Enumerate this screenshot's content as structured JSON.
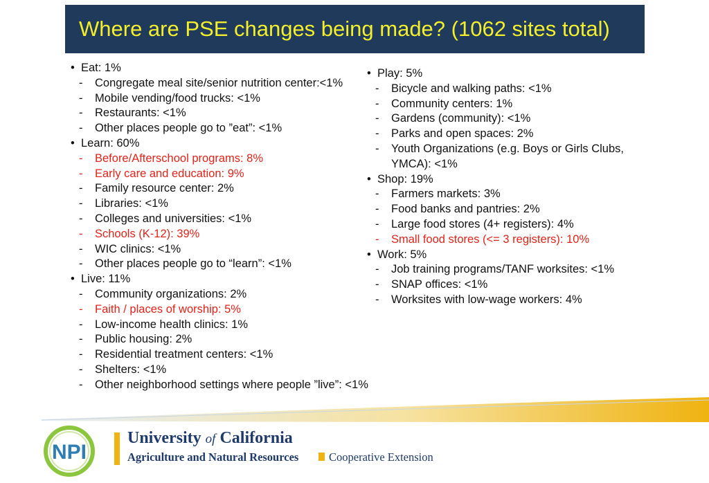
{
  "title": "Where are PSE changes being made? (1062 sites total)",
  "left_column": [
    {
      "label": "Eat: 1%",
      "items": [
        {
          "text": "Congregate meal site/senior nutrition center:<1%",
          "highlight": false
        },
        {
          "text": "Mobile vending/food trucks: <1%",
          "highlight": false
        },
        {
          "text": "Restaurants: <1%",
          "highlight": false
        },
        {
          "text": "Other places people go to ”eat”: <1%",
          "highlight": false
        }
      ]
    },
    {
      "label": "Learn: 60%",
      "items": [
        {
          "text": "Before/Afterschool programs: 8%",
          "highlight": true
        },
        {
          "text": "Early care and education: 9%",
          "highlight": true
        },
        {
          "text": "Family resource center: 2%",
          "highlight": false
        },
        {
          "text": "Libraries: <1%",
          "highlight": false
        },
        {
          "text": "Colleges and universities: <1%",
          "highlight": false
        },
        {
          "text": "Schools (K-12): 39%",
          "highlight": true
        },
        {
          "text": "WIC clinics: <1%",
          "highlight": false
        },
        {
          "text": "Other places people go to “learn”: <1%",
          "highlight": false
        }
      ]
    },
    {
      "label": "Live: 11%",
      "items": [
        {
          "text": "Community organizations: 2%",
          "highlight": false
        },
        {
          "text": "Faith / places of worship: 5%",
          "highlight": true
        },
        {
          "text": "Low-income health clinics: 1%",
          "highlight": false
        },
        {
          "text": "Public housing: 2%",
          "highlight": false
        },
        {
          "text": "Residential treatment centers: <1%",
          "highlight": false
        },
        {
          "text": "Shelters: <1%",
          "highlight": false
        },
        {
          "text": "Other neighborhood settings where people ”live”: <1%",
          "highlight": false
        }
      ]
    }
  ],
  "right_column": [
    {
      "label": "Play: 5%",
      "items": [
        {
          "text": "Bicycle and walking paths: <1%",
          "highlight": false
        },
        {
          "text": "Community centers: 1%",
          "highlight": false
        },
        {
          "text": "Gardens (community): <1%",
          "highlight": false
        },
        {
          "text": "Parks and open spaces: 2%",
          "highlight": false
        },
        {
          "text": "Youth Organizations (e.g. Boys or Girls Clubs, YMCA): <1%",
          "highlight": false
        }
      ]
    },
    {
      "label": "Shop: 19%",
      "items": [
        {
          "text": "Farmers markets: 3%",
          "highlight": false
        },
        {
          "text": "Food banks and pantries: 2%",
          "highlight": false
        },
        {
          "text": "Large food stores (4+ registers): 4%",
          "highlight": false
        },
        {
          "text": "Small food stores (<= 3 registers): 10%",
          "highlight": true
        }
      ]
    },
    {
      "label": "Work: 5%",
      "items": [
        {
          "text": "Job training programs/TANF worksites: <1%",
          "highlight": false
        },
        {
          "text": "SNAP offices: <1%",
          "highlight": false
        },
        {
          "text": "Worksites with low-wage workers: 4%",
          "highlight": false
        }
      ]
    }
  ],
  "footer": {
    "logo_text": "NPI",
    "uc_name_pre": "University ",
    "uc_name_of": "of",
    "uc_name_post": " California",
    "uc_sub": "Agriculture and Natural Resources",
    "ce": "Cooperative Extension"
  },
  "colors": {
    "title_bg": "#203a5c",
    "title_text": "#f3ee2c",
    "highlight": "#e2231a",
    "uc_blue": "#1f3a6a",
    "uc_gold": "#f0b310"
  }
}
